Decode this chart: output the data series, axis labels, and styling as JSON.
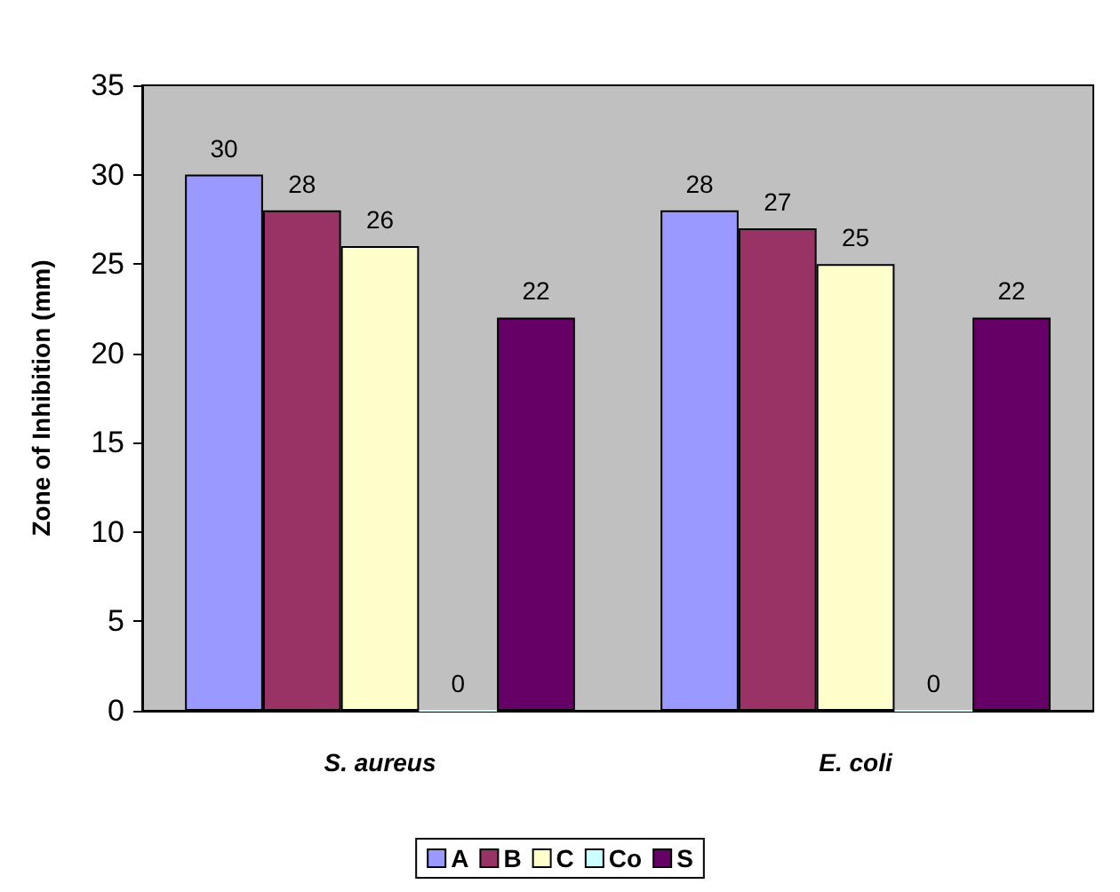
{
  "chart_data": {
    "type": "bar",
    "ylabel": "Zone of Inhibition (mm)",
    "categories": [
      "S. aureus",
      "E. coli"
    ],
    "series": [
      {
        "name": "A",
        "color": "#9999ff",
        "values": [
          30,
          28
        ]
      },
      {
        "name": "B",
        "color": "#993366",
        "values": [
          28,
          27
        ]
      },
      {
        "name": "C",
        "color": "#ffffcc",
        "values": [
          26,
          25
        ]
      },
      {
        "name": "Co",
        "color": "#ccffff",
        "values": [
          0,
          0
        ]
      },
      {
        "name": "S",
        "color": "#660066",
        "values": [
          22,
          22
        ]
      }
    ],
    "ylim": [
      0,
      35
    ],
    "yticks": [
      0,
      5,
      10,
      15,
      20,
      25,
      30,
      35
    ],
    "grid": false,
    "legend": "bottom",
    "data_labels": true
  }
}
